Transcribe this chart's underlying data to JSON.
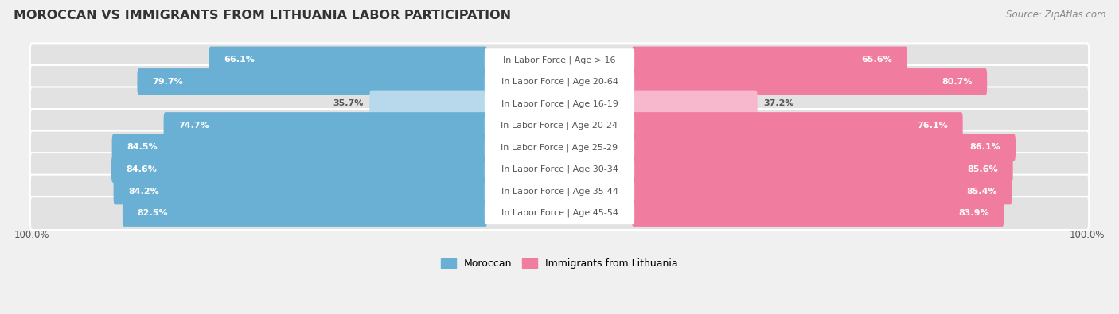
{
  "title": "MOROCCAN VS IMMIGRANTS FROM LITHUANIA LABOR PARTICIPATION",
  "source": "Source: ZipAtlas.com",
  "categories": [
    "In Labor Force | Age > 16",
    "In Labor Force | Age 20-64",
    "In Labor Force | Age 16-19",
    "In Labor Force | Age 20-24",
    "In Labor Force | Age 25-29",
    "In Labor Force | Age 30-34",
    "In Labor Force | Age 35-44",
    "In Labor Force | Age 45-54"
  ],
  "moroccan_values": [
    66.1,
    79.7,
    35.7,
    74.7,
    84.5,
    84.6,
    84.2,
    82.5
  ],
  "lithuania_values": [
    65.6,
    80.7,
    37.2,
    76.1,
    86.1,
    85.6,
    85.4,
    83.9
  ],
  "moroccan_color": "#6aafd4",
  "moroccan_color_light": "#b8d9ec",
  "lithuania_color": "#f07ca0",
  "lithuania_color_light": "#f7b8ce",
  "bg_color": "#f0f0f0",
  "row_bg_color": "#e2e2e2",
  "label_bg_color": "#ffffff",
  "title_color": "#333333",
  "source_color": "#888888",
  "label_color": "#555555",
  "value_color_white": "#ffffff",
  "value_color_dark": "#555555",
  "title_fontsize": 11.5,
  "source_fontsize": 8.5,
  "label_fontsize": 8,
  "value_fontsize": 8,
  "legend_fontsize": 9,
  "axis_label": "100.0%",
  "max_value": 100.0,
  "low_threshold": 50
}
